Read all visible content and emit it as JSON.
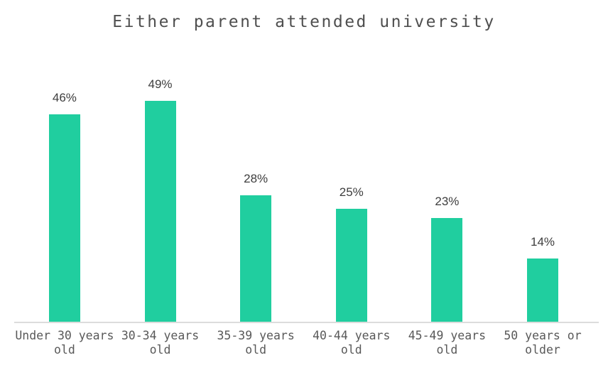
{
  "chart": {
    "title": "Either parent attended university"
  },
  "chart_data": {
    "type": "bar",
    "title": "Either parent attended university",
    "categories": [
      "Under 30 years old",
      "30-34 years old",
      "35-39 years old",
      "40-44 years old",
      "45-49 years old",
      "50 years or older"
    ],
    "values": [
      46,
      49,
      28,
      25,
      23,
      14
    ],
    "value_labels": [
      "46%",
      "49%",
      "28%",
      "25%",
      "23%",
      "14%"
    ],
    "xlabel": "",
    "ylabel": "",
    "ylim": [
      0,
      60
    ],
    "grid": false,
    "legend": false,
    "colors": {
      "bar": "#20ce9f",
      "axis_line": "#dcdcdc",
      "value_label": "#3d3d3d",
      "tick_label": "#595959",
      "title": "#4f4f4f",
      "background": "#ffffff"
    }
  }
}
